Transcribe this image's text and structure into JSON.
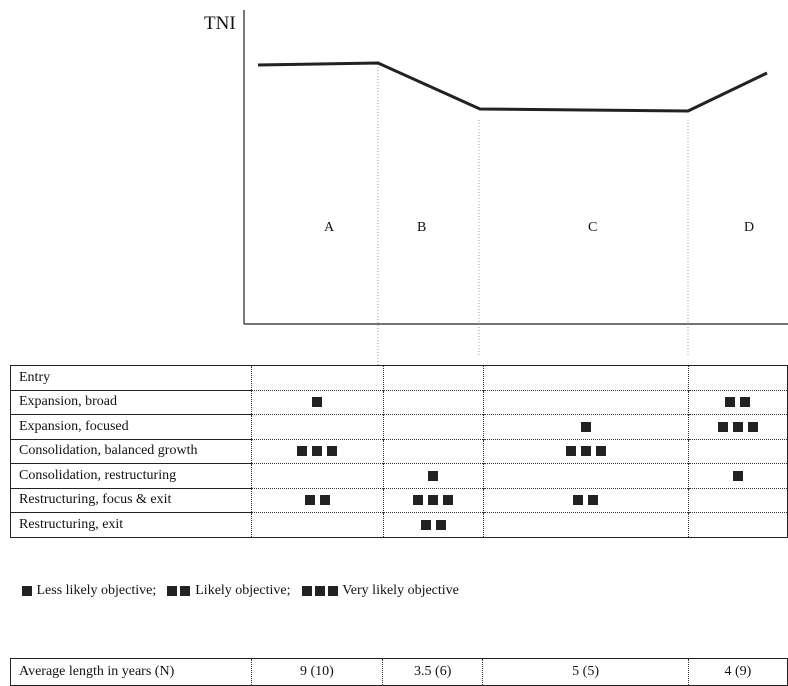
{
  "chart_data": {
    "type": "line",
    "ylabel": "TNI",
    "phases": [
      "A",
      "B",
      "C",
      "D"
    ],
    "tni_trend": [
      {
        "phase_point": "start A",
        "level": "high"
      },
      {
        "phase_point": "end A",
        "level": "high"
      },
      {
        "phase_point": "end B",
        "level": "low"
      },
      {
        "phase_point": "end C",
        "level": "low"
      },
      {
        "phase_point": "end D",
        "level": "rising"
      }
    ]
  },
  "objectives": {
    "columns": [
      "A",
      "B",
      "C",
      "D"
    ],
    "rows": [
      {
        "label": "Entry",
        "values": [
          0,
          0,
          0,
          0
        ]
      },
      {
        "label": "Expansion, broad",
        "values": [
          1,
          0,
          0,
          2
        ]
      },
      {
        "label": "Expansion, focused",
        "values": [
          0,
          0,
          1,
          3
        ]
      },
      {
        "label": "Consolidation, balanced growth",
        "values": [
          3,
          0,
          3,
          0
        ]
      },
      {
        "label": "Consolidation, restructuring",
        "values": [
          0,
          1,
          0,
          1
        ]
      },
      {
        "label": "Restructuring, focus &  exit",
        "values": [
          2,
          3,
          2,
          0
        ]
      },
      {
        "label": "Restructuring, exit",
        "values": [
          0,
          2,
          0,
          0
        ]
      }
    ]
  },
  "legend": {
    "less": "Less likely objective;",
    "likely": "Likely objective;",
    "very": "Very likely objective"
  },
  "average": {
    "label": "Average length in years (N)",
    "values": [
      "9 (10)",
      "3.5 (6)",
      "5 (5)",
      "4 (9)"
    ]
  }
}
